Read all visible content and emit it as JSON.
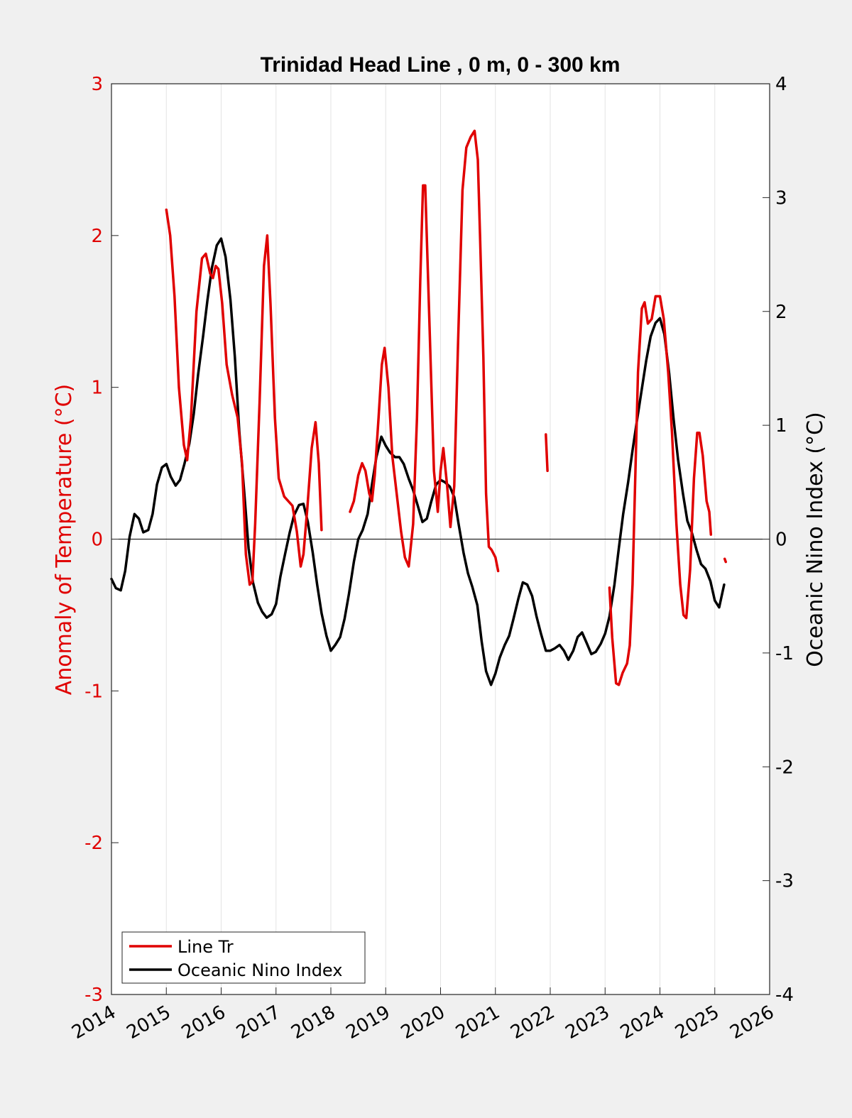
{
  "chart_data": {
    "type": "line",
    "title": "Trinidad Head Line , 0 m, 0 - 300 km",
    "ylabel_left": "Anomaly of Temperature (°C)",
    "ylabel_right": "Oceanic Nino Index (°C)",
    "xlabel": "",
    "xlim": [
      2014,
      2026
    ],
    "xticks": [
      "2014",
      "2015",
      "2016",
      "2017",
      "2018",
      "2019",
      "2020",
      "2021",
      "2022",
      "2023",
      "2024",
      "2025",
      "2026"
    ],
    "ylim_left": [
      -3,
      3
    ],
    "yticks_left": [
      "-3",
      "-2",
      "-1",
      "0",
      "1",
      "2",
      "3"
    ],
    "ylim_right": [
      -4,
      4
    ],
    "yticks_right": [
      "-4",
      "-3",
      "-2",
      "-1",
      "0",
      "1",
      "2",
      "3",
      "4"
    ],
    "grid": "vertical",
    "legend_location": "bottom-left",
    "colors": {
      "line_tr": "#e00000",
      "oni": "#000000",
      "axis_left": "#e00000"
    },
    "series": [
      {
        "name": "Line Tr",
        "axis": "left",
        "segments": [
          [
            [
              2015.0,
              2.17
            ],
            [
              2015.07,
              2.0
            ],
            [
              2015.15,
              1.6
            ],
            [
              2015.23,
              1.0
            ],
            [
              2015.32,
              0.62
            ],
            [
              2015.38,
              0.52
            ],
            [
              2015.45,
              0.8
            ],
            [
              2015.55,
              1.5
            ],
            [
              2015.65,
              1.85
            ],
            [
              2015.72,
              1.88
            ],
            [
              2015.8,
              1.75
            ],
            [
              2015.85,
              1.72
            ],
            [
              2015.9,
              1.8
            ],
            [
              2015.95,
              1.78
            ],
            [
              2016.02,
              1.55
            ],
            [
              2016.1,
              1.15
            ],
            [
              2016.2,
              0.95
            ],
            [
              2016.3,
              0.8
            ],
            [
              2016.38,
              0.5
            ],
            [
              2016.45,
              -0.1
            ],
            [
              2016.52,
              -0.3
            ],
            [
              2016.57,
              -0.28
            ],
            [
              2016.62,
              0.1
            ],
            [
              2016.7,
              0.9
            ],
            [
              2016.78,
              1.8
            ],
            [
              2016.84,
              2.0
            ],
            [
              2016.9,
              1.55
            ],
            [
              2016.98,
              0.8
            ],
            [
              2017.05,
              0.4
            ],
            [
              2017.15,
              0.28
            ],
            [
              2017.3,
              0.22
            ],
            [
              2017.38,
              0.05
            ],
            [
              2017.45,
              -0.18
            ],
            [
              2017.5,
              -0.1
            ],
            [
              2017.57,
              0.2
            ],
            [
              2017.65,
              0.6
            ],
            [
              2017.72,
              0.77
            ],
            [
              2017.78,
              0.5
            ],
            [
              2017.83,
              0.06
            ]
          ],
          [
            [
              2018.35,
              0.18
            ],
            [
              2018.42,
              0.25
            ],
            [
              2018.5,
              0.42
            ],
            [
              2018.57,
              0.5
            ],
            [
              2018.63,
              0.45
            ],
            [
              2018.7,
              0.3
            ],
            [
              2018.75,
              0.25
            ],
            [
              2018.8,
              0.42
            ],
            [
              2018.87,
              0.8
            ],
            [
              2018.93,
              1.15
            ],
            [
              2018.98,
              1.26
            ],
            [
              2019.05,
              1.0
            ],
            [
              2019.12,
              0.55
            ],
            [
              2019.2,
              0.3
            ],
            [
              2019.28,
              0.05
            ],
            [
              2019.35,
              -0.12
            ],
            [
              2019.42,
              -0.18
            ],
            [
              2019.5,
              0.1
            ],
            [
              2019.57,
              0.8
            ],
            [
              2019.63,
              1.7
            ],
            [
              2019.68,
              2.33
            ],
            [
              2019.72,
              2.33
            ],
            [
              2019.8,
              1.4
            ],
            [
              2019.88,
              0.45
            ],
            [
              2019.95,
              0.18
            ],
            [
              2020.0,
              0.45
            ],
            [
              2020.05,
              0.6
            ],
            [
              2020.12,
              0.35
            ],
            [
              2020.18,
              0.08
            ],
            [
              2020.25,
              0.35
            ],
            [
              2020.32,
              1.3
            ],
            [
              2020.4,
              2.3
            ],
            [
              2020.47,
              2.58
            ],
            [
              2020.55,
              2.65
            ],
            [
              2020.62,
              2.69
            ],
            [
              2020.68,
              2.5
            ],
            [
              2020.72,
              2.0
            ],
            [
              2020.78,
              1.2
            ],
            [
              2020.83,
              0.3
            ],
            [
              2020.88,
              -0.05
            ],
            [
              2020.93,
              -0.07
            ],
            [
              2021.0,
              -0.12
            ],
            [
              2021.05,
              -0.21
            ]
          ],
          [
            [
              2021.92,
              0.69
            ],
            [
              2021.95,
              0.45
            ]
          ],
          [
            [
              2023.08,
              -0.32
            ],
            [
              2023.13,
              -0.65
            ],
            [
              2023.2,
              -0.95
            ],
            [
              2023.25,
              -0.96
            ],
            [
              2023.32,
              -0.88
            ],
            [
              2023.4,
              -0.82
            ],
            [
              2023.45,
              -0.7
            ],
            [
              2023.5,
              -0.3
            ],
            [
              2023.55,
              0.4
            ],
            [
              2023.6,
              1.1
            ],
            [
              2023.67,
              1.52
            ],
            [
              2023.72,
              1.56
            ],
            [
              2023.78,
              1.42
            ],
            [
              2023.85,
              1.45
            ],
            [
              2023.92,
              1.6
            ],
            [
              2024.0,
              1.6
            ],
            [
              2024.07,
              1.45
            ],
            [
              2024.15,
              1.1
            ],
            [
              2024.22,
              0.7
            ],
            [
              2024.3,
              0.1
            ],
            [
              2024.37,
              -0.3
            ],
            [
              2024.43,
              -0.5
            ],
            [
              2024.48,
              -0.52
            ],
            [
              2024.55,
              -0.2
            ],
            [
              2024.62,
              0.4
            ],
            [
              2024.68,
              0.7
            ],
            [
              2024.72,
              0.7
            ],
            [
              2024.78,
              0.55
            ],
            [
              2024.85,
              0.25
            ],
            [
              2024.9,
              0.18
            ],
            [
              2024.93,
              0.03
            ]
          ],
          [
            [
              2025.18,
              -0.13
            ],
            [
              2025.2,
              -0.15
            ]
          ]
        ]
      },
      {
        "name": "Oceanic Nino Index",
        "axis": "right",
        "segments": [
          [
            [
              2014.0,
              -0.35
            ],
            [
              2014.08,
              -0.43
            ],
            [
              2014.17,
              -0.45
            ],
            [
              2014.25,
              -0.28
            ],
            [
              2014.33,
              0.02
            ],
            [
              2014.42,
              0.22
            ],
            [
              2014.5,
              0.18
            ],
            [
              2014.58,
              0.06
            ],
            [
              2014.67,
              0.08
            ],
            [
              2014.75,
              0.22
            ],
            [
              2014.83,
              0.48
            ],
            [
              2014.92,
              0.63
            ],
            [
              2015.0,
              0.66
            ],
            [
              2015.08,
              0.55
            ],
            [
              2015.17,
              0.47
            ],
            [
              2015.25,
              0.52
            ],
            [
              2015.33,
              0.66
            ],
            [
              2015.42,
              0.84
            ],
            [
              2015.5,
              1.1
            ],
            [
              2015.58,
              1.45
            ],
            [
              2015.67,
              1.78
            ],
            [
              2015.75,
              2.1
            ],
            [
              2015.83,
              2.38
            ],
            [
              2015.92,
              2.58
            ],
            [
              2016.0,
              2.64
            ],
            [
              2016.08,
              2.48
            ],
            [
              2016.17,
              2.1
            ],
            [
              2016.25,
              1.6
            ],
            [
              2016.33,
              0.95
            ],
            [
              2016.42,
              0.42
            ],
            [
              2016.5,
              -0.08
            ],
            [
              2016.58,
              -0.38
            ],
            [
              2016.67,
              -0.56
            ],
            [
              2016.75,
              -0.64
            ],
            [
              2016.83,
              -0.69
            ],
            [
              2016.92,
              -0.66
            ],
            [
              2017.0,
              -0.57
            ],
            [
              2017.08,
              -0.33
            ],
            [
              2017.17,
              -0.12
            ],
            [
              2017.25,
              0.06
            ],
            [
              2017.33,
              0.21
            ],
            [
              2017.42,
              0.3
            ],
            [
              2017.5,
              0.31
            ],
            [
              2017.58,
              0.15
            ],
            [
              2017.67,
              -0.12
            ],
            [
              2017.75,
              -0.4
            ],
            [
              2017.83,
              -0.65
            ],
            [
              2017.92,
              -0.85
            ],
            [
              2018.0,
              -0.98
            ],
            [
              2018.08,
              -0.93
            ],
            [
              2018.17,
              -0.86
            ],
            [
              2018.25,
              -0.7
            ],
            [
              2018.33,
              -0.48
            ],
            [
              2018.42,
              -0.2
            ],
            [
              2018.5,
              0.0
            ],
            [
              2018.58,
              0.08
            ],
            [
              2018.67,
              0.22
            ],
            [
              2018.75,
              0.48
            ],
            [
              2018.83,
              0.72
            ],
            [
              2018.92,
              0.9
            ],
            [
              2019.0,
              0.82
            ],
            [
              2019.08,
              0.76
            ],
            [
              2019.17,
              0.72
            ],
            [
              2019.25,
              0.72
            ],
            [
              2019.33,
              0.66
            ],
            [
              2019.42,
              0.53
            ],
            [
              2019.5,
              0.43
            ],
            [
              2019.58,
              0.3
            ],
            [
              2019.67,
              0.15
            ],
            [
              2019.75,
              0.18
            ],
            [
              2019.83,
              0.33
            ],
            [
              2019.92,
              0.48
            ],
            [
              2020.0,
              0.52
            ],
            [
              2020.08,
              0.5
            ],
            [
              2020.17,
              0.46
            ],
            [
              2020.25,
              0.37
            ],
            [
              2020.33,
              0.13
            ],
            [
              2020.42,
              -0.12
            ],
            [
              2020.5,
              -0.3
            ],
            [
              2020.58,
              -0.42
            ],
            [
              2020.67,
              -0.58
            ],
            [
              2020.75,
              -0.9
            ],
            [
              2020.83,
              -1.16
            ],
            [
              2020.92,
              -1.28
            ],
            [
              2021.0,
              -1.18
            ],
            [
              2021.08,
              -1.04
            ],
            [
              2021.17,
              -0.93
            ],
            [
              2021.25,
              -0.85
            ],
            [
              2021.33,
              -0.7
            ],
            [
              2021.42,
              -0.52
            ],
            [
              2021.5,
              -0.38
            ],
            [
              2021.58,
              -0.4
            ],
            [
              2021.67,
              -0.5
            ],
            [
              2021.75,
              -0.68
            ],
            [
              2021.83,
              -0.83
            ],
            [
              2021.92,
              -0.98
            ],
            [
              2022.0,
              -0.98
            ],
            [
              2022.08,
              -0.96
            ],
            [
              2022.17,
              -0.93
            ],
            [
              2022.25,
              -0.98
            ],
            [
              2022.33,
              -1.06
            ],
            [
              2022.42,
              -0.98
            ],
            [
              2022.5,
              -0.86
            ],
            [
              2022.58,
              -0.82
            ],
            [
              2022.67,
              -0.92
            ],
            [
              2022.75,
              -1.01
            ],
            [
              2022.83,
              -0.99
            ],
            [
              2022.92,
              -0.92
            ],
            [
              2023.0,
              -0.83
            ],
            [
              2023.08,
              -0.68
            ],
            [
              2023.17,
              -0.4
            ],
            [
              2023.25,
              -0.08
            ],
            [
              2023.33,
              0.22
            ],
            [
              2023.42,
              0.5
            ],
            [
              2023.5,
              0.78
            ],
            [
              2023.58,
              1.04
            ],
            [
              2023.67,
              1.32
            ],
            [
              2023.75,
              1.57
            ],
            [
              2023.83,
              1.78
            ],
            [
              2023.92,
              1.9
            ],
            [
              2024.0,
              1.94
            ],
            [
              2024.08,
              1.8
            ],
            [
              2024.17,
              1.45
            ],
            [
              2024.25,
              1.05
            ],
            [
              2024.33,
              0.7
            ],
            [
              2024.42,
              0.4
            ],
            [
              2024.5,
              0.16
            ],
            [
              2024.58,
              0.06
            ],
            [
              2024.67,
              -0.1
            ],
            [
              2024.75,
              -0.22
            ],
            [
              2024.83,
              -0.26
            ],
            [
              2024.92,
              -0.37
            ],
            [
              2025.0,
              -0.54
            ],
            [
              2025.08,
              -0.6
            ],
            [
              2025.17,
              -0.4
            ]
          ]
        ]
      }
    ]
  },
  "legend": {
    "entries": [
      {
        "label": "Line Tr",
        "color": "#e00000"
      },
      {
        "label": "Oceanic Nino Index",
        "color": "#000000"
      }
    ]
  }
}
